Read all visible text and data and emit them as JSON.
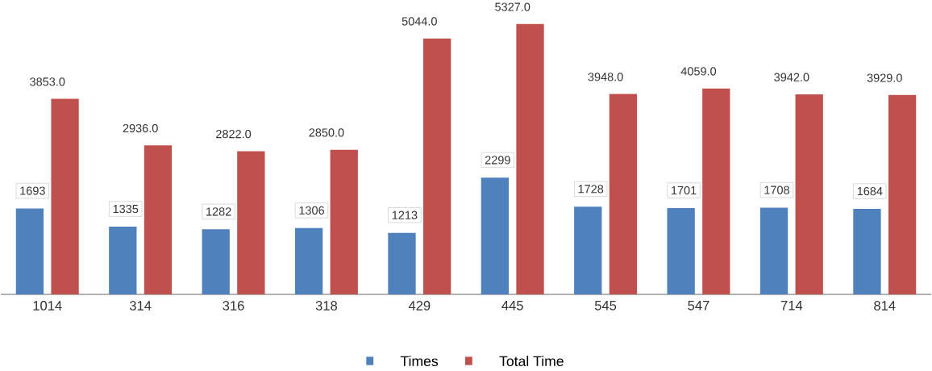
{
  "chart_data": {
    "type": "bar",
    "categories": [
      "1014",
      "314",
      "316",
      "318",
      "429",
      "445",
      "545",
      "547",
      "714",
      "814"
    ],
    "series": [
      {
        "name": "Times",
        "color": "#4f81bd",
        "values": [
          1693,
          1335,
          1282,
          1306,
          1213,
          2299,
          1728,
          1701,
          1708,
          1684
        ],
        "value_labels": [
          "1693",
          "1335",
          "1282",
          "1306",
          "1213",
          "2299",
          "1728",
          "1701",
          "1708",
          "1684"
        ]
      },
      {
        "name": "Total Time",
        "color": "#c0504d",
        "values": [
          3853,
          2936,
          2822,
          2850,
          5044,
          5327,
          3948,
          4059,
          3942,
          3929
        ],
        "value_labels": [
          "3853.0",
          "2936.0",
          "2822.0",
          "2850.0",
          "5044.0",
          "5327.0",
          "3948.0",
          "4059.0",
          "3942.0",
          "3929.0"
        ]
      }
    ],
    "legend": "bottom"
  }
}
